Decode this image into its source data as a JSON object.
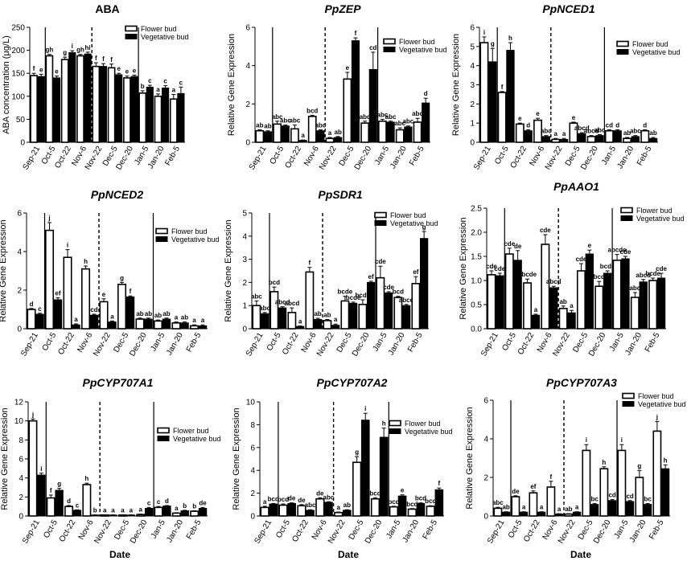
{
  "figure": {
    "shared_xlabel": "Date",
    "legend_labels": [
      "Flower bud",
      "Vegetative bud"
    ]
  },
  "chart_data": [
    {
      "type": "bar",
      "title": "ABA",
      "italic_title": false,
      "ylabel": "ABA concentration (μg/L)",
      "xlabel": "",
      "ylim": [
        0,
        250
      ],
      "yticks": [
        0,
        50,
        100,
        150,
        200,
        250
      ],
      "categories": [
        "Sep-21",
        "Oct-5",
        "Oct-22",
        "Nov-6",
        "Nov-22",
        "Dec-5",
        "Dec-20",
        "Jan-5",
        "Jan-20",
        "Feb-5"
      ],
      "solid_dividers_after": [
        0,
        6
      ],
      "dashed_divider_after": 3,
      "series": [
        {
          "name": "Flower bud",
          "values": [
            145,
            188,
            180,
            188,
            165,
            162,
            140,
            107,
            100,
            94
          ],
          "errors": [
            5,
            3,
            5,
            3,
            8,
            8,
            4,
            5,
            5,
            10
          ],
          "letters": [
            "f",
            "gh",
            "g",
            "gh",
            "f",
            "f",
            "e",
            "b",
            "a",
            "a"
          ]
        },
        {
          "name": "Vegetative bud",
          "values": [
            143,
            140,
            195,
            192,
            165,
            147,
            143,
            120,
            118,
            106
          ],
          "errors": [
            5,
            4,
            4,
            4,
            6,
            3,
            3,
            4,
            5,
            14
          ],
          "letters": [
            "e",
            "e",
            "i",
            "hi",
            "f",
            "e",
            "e",
            "c",
            "c",
            "c"
          ]
        }
      ]
    },
    {
      "type": "bar",
      "title": "PpZEP",
      "italic_title": true,
      "ylabel": "Relative Gene Expression",
      "xlabel": "",
      "ylim": [
        0,
        6
      ],
      "yticks": [
        0,
        2,
        4,
        6
      ],
      "categories": [
        "Sep-21",
        "Oct-5",
        "Oct-22",
        "Nov-6",
        "Nov-22",
        "Dec-5",
        "Dec-20",
        "Jan-5",
        "Jan-20",
        "Feb-5"
      ],
      "solid_dividers_after": [
        0,
        6
      ],
      "dashed_divider_after": 3,
      "series": [
        {
          "name": "Flower bud",
          "values": [
            0.6,
            0.95,
            0.7,
            1.35,
            0.2,
            3.3,
            1.0,
            1.1,
            0.65,
            1.05
          ],
          "errors": [
            0.05,
            0.15,
            0.2,
            0.05,
            0.05,
            0.35,
            0.1,
            0.1,
            0.1,
            0.2
          ],
          "letters": [
            "ab",
            "abc",
            "abc",
            "bcd",
            "a",
            "e",
            "abc",
            "abc",
            "abc",
            "abc"
          ]
        },
        {
          "name": "Vegetative bud",
          "values": [
            0.55,
            0.85,
            0.1,
            0.6,
            0.25,
            5.3,
            3.8,
            1.05,
            0.8,
            2.05
          ],
          "errors": [
            0.05,
            0.05,
            0.02,
            0.05,
            0.05,
            0.15,
            0.9,
            0.05,
            0.05,
            0.25
          ],
          "letters": [
            "ab",
            "abc",
            "a",
            "abc",
            "ab",
            "f",
            "cd",
            "abc",
            "abc",
            "d"
          ]
        }
      ]
    },
    {
      "type": "bar",
      "title": "PpNCED1",
      "italic_title": true,
      "ylabel": "Relative Gene Expression",
      "xlabel": "",
      "ylim": [
        0,
        6
      ],
      "yticks": [
        0,
        1,
        2,
        3,
        4,
        5,
        6
      ],
      "categories": [
        "Sep-21",
        "Oct-5",
        "Oct-22",
        "Nov-6",
        "Nov-22",
        "Dec-5",
        "Dec-20",
        "Jan-5",
        "Jan-20",
        "Feb-5"
      ],
      "solid_dividers_after": [
        0,
        6
      ],
      "dashed_divider_after": 3,
      "series": [
        {
          "name": "Flower bud",
          "values": [
            5.2,
            2.6,
            0.95,
            1.15,
            0.15,
            1.0,
            0.3,
            0.6,
            0.2,
            0.6
          ],
          "errors": [
            0.3,
            0.05,
            0.05,
            0.1,
            0.05,
            0.05,
            0.05,
            0.05,
            0.05,
            0.05
          ],
          "letters": [
            "i",
            "f",
            "e",
            "e",
            "a",
            "e",
            "abcd",
            "cd",
            "ab",
            "d"
          ]
        },
        {
          "name": "Vegetative bud",
          "values": [
            4.2,
            4.8,
            0.6,
            0.3,
            0.15,
            0.45,
            0.35,
            0.6,
            0.3,
            0.2
          ],
          "errors": [
            0.7,
            0.4,
            0.05,
            0.05,
            0.05,
            0.05,
            0.05,
            0.05,
            0.05,
            0.05
          ],
          "letters": [
            "g",
            "h",
            "d",
            "abc",
            "a",
            "abcd",
            "abc",
            "d",
            "abc",
            "ab"
          ]
        }
      ]
    },
    {
      "type": "bar",
      "title": "PpNCED2",
      "italic_title": true,
      "ylabel": "Relative Gene Expression",
      "xlabel": "",
      "ylim": [
        0,
        6
      ],
      "yticks": [
        0,
        2,
        4,
        6
      ],
      "categories": [
        "Sep-21",
        "Oct-5",
        "Oct-22",
        "Nov-6",
        "Nov-22",
        "Dec-5",
        "Dec-20",
        "Jan-5",
        "Jan-20",
        "Feb-5"
      ],
      "solid_dividers_after": [
        0,
        6
      ],
      "dashed_divider_after": 3,
      "series": [
        {
          "name": "Flower bud",
          "values": [
            1.0,
            5.1,
            3.7,
            3.1,
            1.4,
            2.3,
            0.5,
            0.4,
            0.3,
            0.15
          ],
          "errors": [
            0.05,
            0.4,
            0.4,
            0.15,
            0.15,
            0.1,
            0.05,
            0.05,
            0.05,
            0.05
          ],
          "letters": [
            "d",
            "j",
            "i",
            "h",
            "e",
            "g",
            "ab",
            "ab",
            "a",
            "a"
          ]
        },
        {
          "name": "Vegetative bud",
          "values": [
            0.75,
            1.5,
            0.2,
            0.7,
            0.35,
            1.65,
            0.5,
            0.5,
            0.3,
            0.15
          ],
          "errors": [
            0.05,
            0.1,
            0.05,
            0.05,
            0.05,
            0.05,
            0.05,
            0.05,
            0.05,
            0.05
          ],
          "letters": [
            "c",
            "ef",
            "a",
            "cd",
            "a",
            "f",
            "ab",
            "ab",
            "ab",
            "a"
          ]
        }
      ]
    },
    {
      "type": "bar",
      "title": "PpSDR1",
      "italic_title": true,
      "ylabel": "Relative Gene Expression",
      "xlabel": "",
      "ylim": [
        0,
        5
      ],
      "yticks": [
        0,
        1,
        2,
        3,
        4,
        5
      ],
      "categories": [
        "Sep-21",
        "Oct-5",
        "Oct-22",
        "Nov-6",
        "Nov-22",
        "Dec-5",
        "Dec-20",
        "Jan-5",
        "Jan-20",
        "Feb-5"
      ],
      "solid_dividers_after": [
        0,
        6
      ],
      "dashed_divider_after": 3,
      "series": [
        {
          "name": "Flower bud",
          "values": [
            1.0,
            1.6,
            0.7,
            2.45,
            0.35,
            1.2,
            1.05,
            2.2,
            1.35,
            1.95
          ],
          "errors": [
            0.2,
            0.2,
            0.2,
            0.2,
            0.05,
            0.2,
            0.2,
            0.5,
            0.05,
            0.3
          ],
          "letters": [
            "abc",
            "bcd",
            "abcd",
            "f",
            "ab",
            "bcde",
            "bcde",
            "cde",
            "bcd",
            "ef"
          ]
        },
        {
          "name": "Vegetative bud",
          "values": [
            0.65,
            0.9,
            0.1,
            0.4,
            0.15,
            1.1,
            2.0,
            1.55,
            1.0,
            3.9
          ],
          "errors": [
            0.05,
            0.05,
            0.02,
            0.05,
            0.05,
            0.05,
            0.05,
            0.05,
            0.05,
            0.3
          ],
          "letters": [
            "abc",
            "abcd",
            "a",
            "ab",
            "a",
            "bcde",
            "ef",
            "cde",
            "abcd",
            "g"
          ]
        }
      ]
    },
    {
      "type": "bar",
      "title": "PpAAO1",
      "italic_title": true,
      "ylabel": "Relative Gene Expression",
      "xlabel": "",
      "ylim": [
        0,
        2.5
      ],
      "yticks": [
        0.0,
        0.5,
        1.0,
        1.5,
        2.0,
        2.5
      ],
      "categories": [
        "Sep-21",
        "Oct-5",
        "Oct-22",
        "Nov-6",
        "Nov-22",
        "Dec-5",
        "Dec-20",
        "Jan-5",
        "Jan-20",
        "Feb-5"
      ],
      "solid_dividers_after": [
        0,
        6
      ],
      "dashed_divider_after": 3,
      "series": [
        {
          "name": "Flower bud",
          "values": [
            1.12,
            1.55,
            0.95,
            1.75,
            0.42,
            1.2,
            0.88,
            1.42,
            0.65,
            1.0
          ],
          "errors": [
            0.08,
            0.12,
            0.08,
            0.2,
            0.05,
            0.15,
            0.1,
            0.12,
            0.1,
            0.05
          ],
          "letters": [
            "cde",
            "cde",
            "abcde",
            "cde",
            "ab",
            "cde",
            "abcde",
            "abcde",
            "abc",
            "bcde"
          ]
        },
        {
          "name": "Vegetative bud",
          "values": [
            1.1,
            1.42,
            0.28,
            0.85,
            0.33,
            1.55,
            1.15,
            1.45,
            0.97,
            1.05
          ],
          "errors": [
            0.05,
            0.2,
            0.02,
            0.03,
            0.05,
            0.08,
            0.05,
            0.05,
            0.05,
            0.1
          ],
          "letters": [
            "cde",
            "de",
            "a",
            "abcd",
            "a",
            "e",
            "bcde",
            "cde",
            "abcd",
            "cde"
          ]
        }
      ]
    },
    {
      "type": "bar",
      "title": "PpCYP707A1",
      "italic_title": true,
      "ylabel": "Relative Gene Expression",
      "xlabel": "",
      "ylim": [
        0,
        12
      ],
      "yticks": [
        0,
        2,
        4,
        6,
        8,
        10,
        12
      ],
      "categories": [
        "Sep-21",
        "Oct-5",
        "Oct-22",
        "Nov-6",
        "Nov-22",
        "Dec-5",
        "Dec-20",
        "Jan-5",
        "Jan-20",
        "Feb-5"
      ],
      "solid_dividers_after": [
        0,
        6
      ],
      "dashed_divider_after": 3,
      "series": [
        {
          "name": "Flower bud",
          "values": [
            10.0,
            1.9,
            1.0,
            3.3,
            0.1,
            0.1,
            0.15,
            0.9,
            0.3,
            0.5
          ],
          "errors": [
            0.2,
            0.3,
            0.1,
            0.15,
            0.02,
            0.02,
            0.05,
            0.1,
            0.05,
            0.05
          ],
          "letters": [
            "j",
            "f",
            "d",
            "h",
            "a",
            "a",
            "a",
            "c",
            "a",
            "b"
          ]
        },
        {
          "name": "Vegetative bud",
          "values": [
            4.3,
            2.7,
            0.6,
            0.1,
            0.1,
            0.1,
            0.8,
            1.05,
            0.55,
            0.8
          ],
          "errors": [
            0.2,
            0.2,
            0.05,
            0.02,
            0.02,
            0.02,
            0.1,
            0.05,
            0.05,
            0.1
          ],
          "letters": [
            "i",
            "g",
            "c",
            "b",
            "a",
            "a",
            "c",
            "d",
            "b",
            "de"
          ]
        }
      ]
    },
    {
      "type": "bar",
      "title": "PpCYP707A2",
      "italic_title": true,
      "ylabel": "Relative Gene Expression",
      "xlabel": "",
      "ylim": [
        0,
        10
      ],
      "yticks": [
        0,
        2,
        4,
        6,
        8,
        10
      ],
      "categories": [
        "Sep-21",
        "Oct-5",
        "Oct-22",
        "Nov-6",
        "Nov-22",
        "Dec-5",
        "Dec-20",
        "Jan-5",
        "Jan-20",
        "Feb-5"
      ],
      "solid_dividers_after": [
        0,
        6
      ],
      "dashed_divider_after": 3,
      "series": [
        {
          "name": "Flower bud",
          "values": [
            0.75,
            0.95,
            0.9,
            1.5,
            0.3,
            4.7,
            1.5,
            0.8,
            0.6,
            0.85
          ],
          "errors": [
            0.1,
            0.1,
            0.1,
            0.1,
            0.05,
            0.5,
            0.1,
            0.05,
            0.05,
            0.05
          ],
          "letters": [
            "a",
            "bcd",
            "de",
            "de",
            "a",
            "g",
            "bcd",
            "bcd",
            "bcd",
            "bcd"
          ]
        },
        {
          "name": "Vegetative bud",
          "values": [
            1.05,
            1.1,
            0.5,
            1.2,
            0.5,
            8.4,
            6.9,
            1.75,
            1.1,
            2.3
          ],
          "errors": [
            0.05,
            0.05,
            0.05,
            0.05,
            0.05,
            0.6,
            0.8,
            0.1,
            0.05,
            0.15
          ],
          "letters": [
            "bcd",
            "de",
            "abc",
            "abc",
            "ab",
            "i",
            "h",
            "e",
            "bcd",
            "f"
          ]
        }
      ]
    },
    {
      "type": "bar",
      "title": "PpCYP707A3",
      "italic_title": true,
      "ylabel": "Relative Gene Expression",
      "xlabel": "",
      "ylim": [
        0,
        6
      ],
      "yticks": [
        0,
        2,
        4,
        6
      ],
      "categories": [
        "Sep-21",
        "Oct-5",
        "Oct-22",
        "Nov-6",
        "Nov-22",
        "Dec-5",
        "Dec-20",
        "Jan-5",
        "Jan-20",
        "Feb-5"
      ],
      "solid_dividers_after": [
        0,
        6
      ],
      "dashed_divider_after": 3,
      "series": [
        {
          "name": "Flower bud",
          "values": [
            0.4,
            1.0,
            1.2,
            1.5,
            0.1,
            3.4,
            2.45,
            3.4,
            2.0,
            4.4
          ],
          "errors": [
            0.05,
            0.05,
            0.1,
            0.3,
            0.02,
            0.3,
            0.1,
            0.3,
            0.35,
            0.5
          ],
          "letters": [
            "abc",
            "de",
            "ef",
            "f",
            "ab",
            "i",
            "h",
            "i",
            "g",
            "j"
          ]
        },
        {
          "name": "Vegetative bud",
          "values": [
            0.2,
            0.2,
            0.2,
            0.1,
            0.2,
            0.6,
            0.8,
            0.75,
            0.6,
            2.45
          ],
          "errors": [
            0.02,
            0.02,
            0.02,
            0.02,
            0.02,
            0.05,
            0.05,
            0.05,
            0.05,
            0.2
          ],
          "letters": [
            "ab",
            "a",
            "a",
            "a",
            "a",
            "bc",
            "cd",
            "cd",
            "bc",
            "h"
          ]
        }
      ]
    }
  ]
}
